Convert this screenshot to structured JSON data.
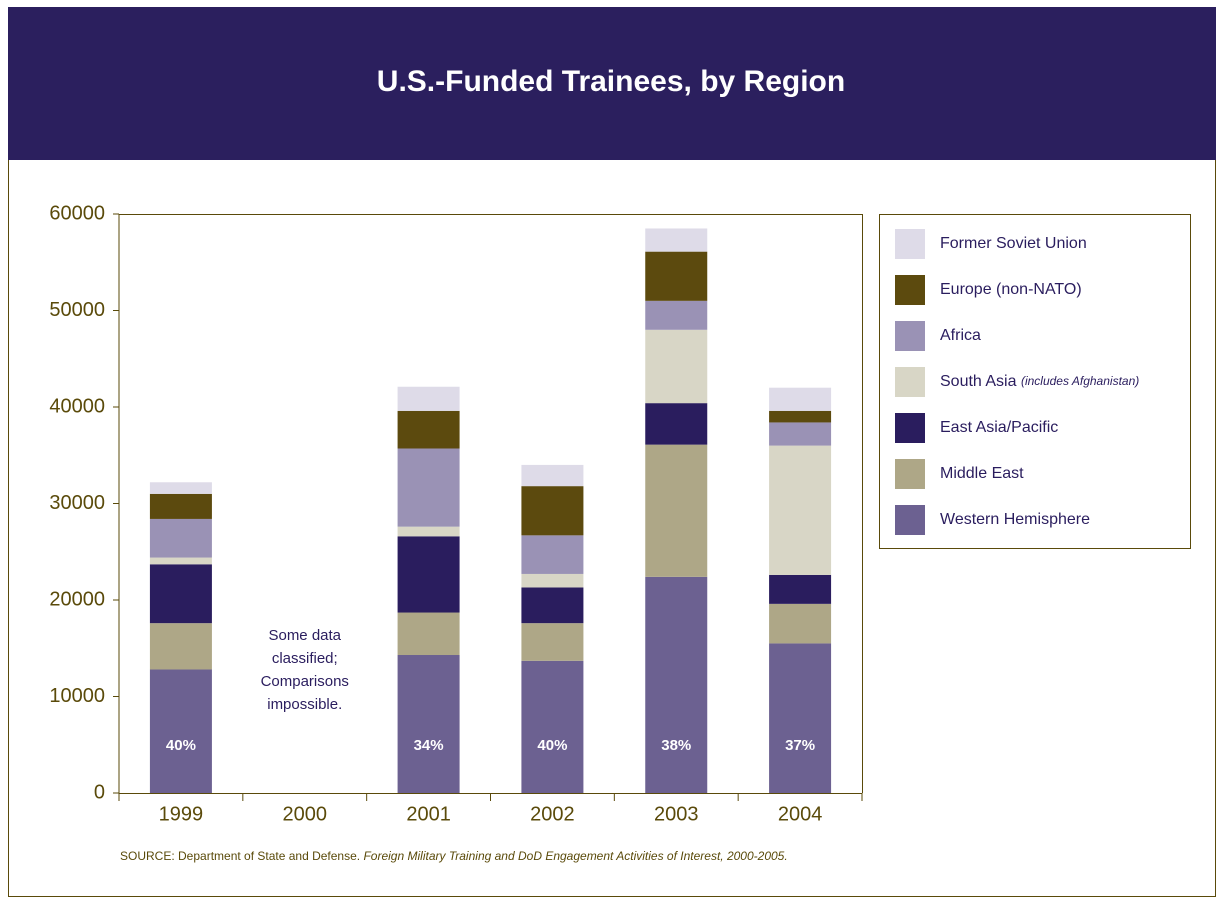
{
  "chart_data": {
    "type": "stacked_bar",
    "title": "U.S.-Funded Trainees, by Region",
    "categories": [
      "1999",
      "2000",
      "2001",
      "2002",
      "2003",
      "2004"
    ],
    "series": [
      {
        "name": "Western Hemisphere",
        "color": "#6c6191",
        "values": [
          12800,
          null,
          14300,
          13700,
          22400,
          15500
        ]
      },
      {
        "name": "Middle East",
        "color": "#aea787",
        "values": [
          4800,
          null,
          4400,
          3900,
          13700,
          4100
        ]
      },
      {
        "name": "East Asia/Pacific",
        "color": "#2a1d5e",
        "values": [
          6100,
          null,
          7900,
          3700,
          4300,
          3000
        ]
      },
      {
        "name": "South Asia",
        "name_note": "(includes Afghanistan)",
        "color": "#d8d6c6",
        "values": [
          700,
          null,
          1000,
          1400,
          7600,
          13400
        ]
      },
      {
        "name": "Africa",
        "color": "#9a92b5",
        "values": [
          4000,
          null,
          8100,
          4000,
          3000,
          2400
        ]
      },
      {
        "name": "Europe (non-NATO)",
        "color": "#5c4a0e",
        "values": [
          2600,
          null,
          3900,
          5100,
          5100,
          1200
        ]
      },
      {
        "name": "Former Soviet Union",
        "color": "#dedbe8",
        "values": [
          1200,
          null,
          2500,
          2200,
          2400,
          2400
        ]
      }
    ],
    "bar_labels": [
      "40%",
      null,
      "34%",
      "40%",
      "38%",
      "37%"
    ],
    "annotation": {
      "category": 1,
      "lines": [
        "Some",
        "data",
        "classified;",
        "Comparisons",
        "impossible."
      ]
    },
    "ylim": [
      0,
      60000
    ],
    "yticks": [
      0,
      10000,
      20000,
      30000,
      40000,
      50000,
      60000
    ],
    "legend": "right",
    "source": {
      "text": "SOURCE: Department of State and Defense.",
      "italic": "Foreign Military Training and DoD Engagement Activities of Interest, 2000-2005."
    }
  }
}
